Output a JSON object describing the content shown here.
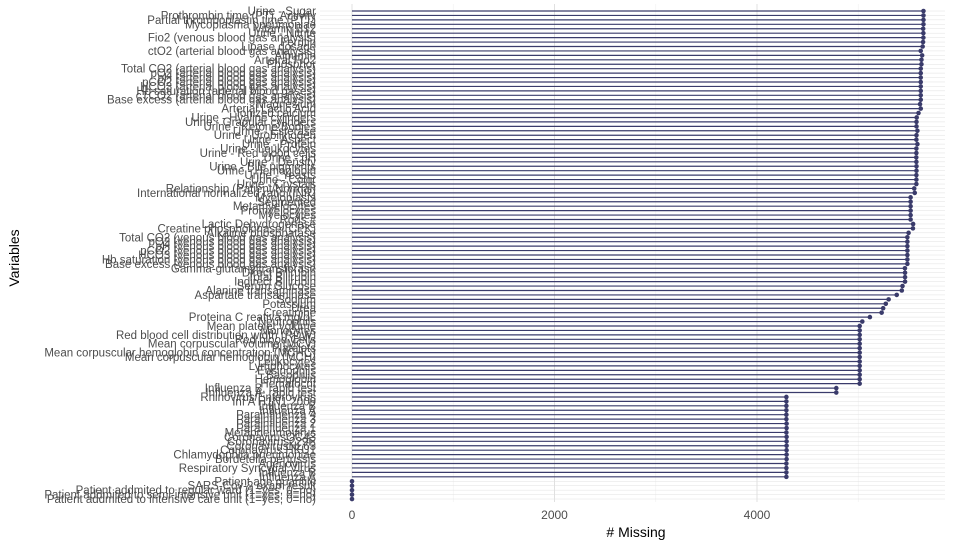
{
  "chart_data": {
    "type": "lollipop",
    "xlabel": "# Missing",
    "ylabel": "Variables",
    "xlim": [
      -50,
      5650
    ],
    "xticks": [
      0,
      2000,
      4000
    ],
    "grid": true,
    "orientation": "horizontal",
    "colors": {
      "stem": "#3a3b6b",
      "point": "#3a3b6b",
      "grid_major": "#e0e0e0",
      "grid_minor": "#f0f0f0"
    },
    "rows": [
      {
        "label": "Urine - Sugar",
        "value": 5644
      },
      {
        "label": "Prothrombin time (PT), Activity",
        "value": 5644
      },
      {
        "label": "Partial thromboplastin time (PTT)",
        "value": 5644
      },
      {
        "label": "Mycoplasma pneumoniae",
        "value": 5644
      },
      {
        "label": "Vitamin B12",
        "value": 5641
      },
      {
        "label": "Urine - Nitrite",
        "value": 5643
      },
      {
        "label": "Fio2 (venous blood gas analysis)",
        "value": 5643
      },
      {
        "label": "Ferritin",
        "value": 5640
      },
      {
        "label": "Lipase dosage",
        "value": 5636
      },
      {
        "label": "ctO2 (arterial blood gas analysis)",
        "value": 5617
      },
      {
        "label": "Albumin",
        "value": 5631
      },
      {
        "label": "Arteiral Fio2",
        "value": 5624
      },
      {
        "label": "Phosphor",
        "value": 5624
      },
      {
        "label": "Total CO2 (arterial blood gas analysis)",
        "value": 5617
      },
      {
        "label": "pO2 (arterial blood gas analysis)",
        "value": 5617
      },
      {
        "label": "pH (arterial blood gas analysis)",
        "value": 5617
      },
      {
        "label": "pCO2 (arterial blood gas analysis)",
        "value": 5617
      },
      {
        "label": "HCO3 (arterial blood gas analysis)",
        "value": 5617
      },
      {
        "label": "Hb saturation (arterial blood gases)",
        "value": 5617
      },
      {
        "label": "cTCO2 (arterial blood gas analysis)",
        "value": 5617
      },
      {
        "label": "Base excess (arterial blood gas analysis)",
        "value": 5617
      },
      {
        "label": "Magnesium",
        "value": 5610
      },
      {
        "label": "Arterial Lactic Acid",
        "value": 5617
      },
      {
        "label": "Ionized calcium",
        "value": 5595
      },
      {
        "label": "Urine - Hyaline cylinders",
        "value": 5577
      },
      {
        "label": "Urine - Granular cylinders",
        "value": 5575
      },
      {
        "label": "Urine - Ketone Bodies",
        "value": 5575
      },
      {
        "label": "Urine - Esterase",
        "value": 5584
      },
      {
        "label": "Urine - Urobilinogen",
        "value": 5575
      },
      {
        "label": "Urine - Aspect",
        "value": 5574
      },
      {
        "label": "Urine - Protein",
        "value": 5584
      },
      {
        "label": "Urine - Leukocytes",
        "value": 5574
      },
      {
        "label": "Urine - Red blood cells",
        "value": 5574
      },
      {
        "label": "Urine - pH",
        "value": 5573
      },
      {
        "label": "Urine - Density",
        "value": 5574
      },
      {
        "label": "Urine - Bile pigments",
        "value": 5575
      },
      {
        "label": "Urine - Hemoglobin",
        "value": 5575
      },
      {
        "label": "Urine - Yeasts",
        "value": 5574
      },
      {
        "label": "Urine - Color",
        "value": 5574
      },
      {
        "label": "Urine - Crystals",
        "value": 5574
      },
      {
        "label": "Relationship (Patient/Normal)",
        "value": 5553
      },
      {
        "label": "International normalized ratio (INR)",
        "value": 5558
      },
      {
        "label": "Myeloblasts",
        "value": 5517
      },
      {
        "label": "Segmented",
        "value": 5517
      },
      {
        "label": "Metamyelocytes",
        "value": 5517
      },
      {
        "label": "Promyelocytes",
        "value": 5517
      },
      {
        "label": "Myelocytes",
        "value": 5517
      },
      {
        "label": "Rods #",
        "value": 5517
      },
      {
        "label": "Lactic Dehydrogenase",
        "value": 5542
      },
      {
        "label": "Creatine phosphokinase (CPK)",
        "value": 5540
      },
      {
        "label": "Alkaline phosphatase",
        "value": 5497
      },
      {
        "label": "Total CO2 (venous blood gas analysis)",
        "value": 5485
      },
      {
        "label": "pO2 (venous blood gas analysis)",
        "value": 5485
      },
      {
        "label": "pH (venous blood gas analysis)",
        "value": 5485
      },
      {
        "label": "pCO2 (venous blood gas analysis)",
        "value": 5485
      },
      {
        "label": "HCO3 (venous blood gas analysis)",
        "value": 5485
      },
      {
        "label": "Hb saturation (venous blood gas analysis)",
        "value": 5485
      },
      {
        "label": "Base excess (venous blood gas analysis)",
        "value": 5485
      },
      {
        "label": "Gamma-glutamyltransferase",
        "value": 5461
      },
      {
        "label": "Direct Bilirubin",
        "value": 5462
      },
      {
        "label": "Total Bilirubin",
        "value": 5462
      },
      {
        "label": "Indirect Bilirubin",
        "value": 5462
      },
      {
        "label": "Serum Glucose",
        "value": 5437
      },
      {
        "label": "Alanine transaminase",
        "value": 5430
      },
      {
        "label": "Aspartate transaminase",
        "value": 5380
      },
      {
        "label": "Sodium",
        "value": 5300
      },
      {
        "label": "Potassium",
        "value": 5272
      },
      {
        "label": "Urea",
        "value": 5246
      },
      {
        "label": "Creatinine",
        "value": 5231
      },
      {
        "label": "Proteina C reativa mg/dL",
        "value": 5115
      },
      {
        "label": "Neutrophils",
        "value": 5040
      },
      {
        "label": "Mean platelet volume",
        "value": 5014
      },
      {
        "label": "Monocytes",
        "value": 5014
      },
      {
        "label": "Red blood cell distribution width (RDW)",
        "value": 5014
      },
      {
        "label": "Red blood Cells",
        "value": 5014
      },
      {
        "label": "Mean corpuscular volume (MCV)",
        "value": 5014
      },
      {
        "label": "Platelets",
        "value": 5014
      },
      {
        "label": "Mean corpuscular hemoglobin concentration (MCHC)",
        "value": 5014
      },
      {
        "label": "Mean corpuscular hemoglobin (MCH)",
        "value": 5014
      },
      {
        "label": "Leukocytes",
        "value": 5014
      },
      {
        "label": "Lymphocytes",
        "value": 5014
      },
      {
        "label": "Eosinophils",
        "value": 5014
      },
      {
        "label": "Basophils",
        "value": 5014
      },
      {
        "label": "Hemoglobin",
        "value": 5014
      },
      {
        "label": "Hematocrit",
        "value": 5014
      },
      {
        "label": "Influenza B, rapid test",
        "value": 4783
      },
      {
        "label": "Influenza A, rapid test",
        "value": 4783
      },
      {
        "label": "Rhinovirus/Enterovirus",
        "value": 4290
      },
      {
        "label": "Inf A H1N1 2009",
        "value": 4290
      },
      {
        "label": "Influenza B",
        "value": 4290
      },
      {
        "label": "Influenza A",
        "value": 4290
      },
      {
        "label": "Parainfluenza 4",
        "value": 4290
      },
      {
        "label": "Parainfluenza 3",
        "value": 4290
      },
      {
        "label": "Parainfluenza 2",
        "value": 4292
      },
      {
        "label": "Parainfluenza 1",
        "value": 4292
      },
      {
        "label": "Metapneumovirus",
        "value": 4290
      },
      {
        "label": "CoronavirusOC43",
        "value": 4292
      },
      {
        "label": "Coronavirus229E",
        "value": 4292
      },
      {
        "label": "CoronavirusNL63",
        "value": 4292
      },
      {
        "label": "Coronavirus HKU1",
        "value": 4292
      },
      {
        "label": "Chlamydophila pneumoniae",
        "value": 4292
      },
      {
        "label": "Bordetella pertussis",
        "value": 4292
      },
      {
        "label": "Adenovirus",
        "value": 4290
      },
      {
        "label": "Respiratory Syncytial Virus",
        "value": 4290
      },
      {
        "label": "Influenza B",
        "value": 4290
      },
      {
        "label": "Influenza A",
        "value": 4290
      },
      {
        "label": "Patient age quantile",
        "value": 0
      },
      {
        "label": "SARS-Cov-2 exam result",
        "value": 0
      },
      {
        "label": "Patient addmited to regular ward (1=yes, 0=no)",
        "value": 0
      },
      {
        "label": "Patient addmited to semi-intensive unit (1=yes, 0=no)",
        "value": 0
      },
      {
        "label": "Patient addmited to intensive care unit (1=yes, 0=no)",
        "value": 0
      }
    ]
  }
}
